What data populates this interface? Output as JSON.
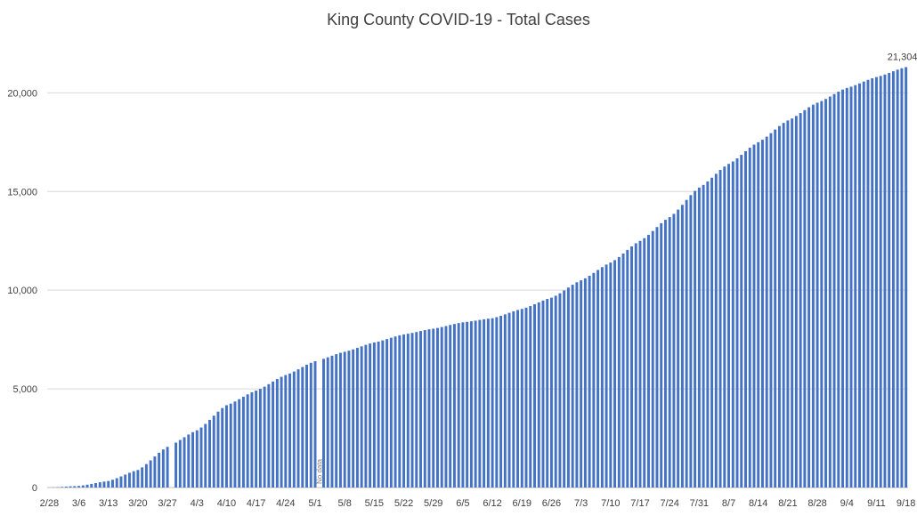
{
  "chart_data": {
    "type": "bar",
    "title": "King County COVID-19 - Total Cases",
    "xlabel": "",
    "ylabel": "",
    "ylim": [
      0,
      22000
    ],
    "y_ticks": [
      0,
      5000,
      10000,
      15000,
      20000
    ],
    "y_tick_labels": [
      "0",
      "5,000",
      "10,000",
      "15,000",
      "20,000"
    ],
    "x_tick_labels": [
      "2/28",
      "3/6",
      "3/13",
      "3/20",
      "3/27",
      "4/3",
      "4/10",
      "4/17",
      "4/24",
      "5/1",
      "5/8",
      "5/15",
      "5/22",
      "5/29",
      "6/5",
      "6/12",
      "6/19",
      "6/26",
      "7/3",
      "7/10",
      "7/17",
      "7/24",
      "7/31",
      "8/7",
      "8/14",
      "8/21",
      "8/28",
      "9/4",
      "9/11",
      "9/18"
    ],
    "start_date": "2/28",
    "end_date": "9/18",
    "gridlines": true,
    "legend": "none",
    "bar_color": "#4472c4",
    "anchor_values": [
      [
        "2/28",
        0
      ],
      [
        "3/6",
        80
      ],
      [
        "3/13",
        330
      ],
      [
        "3/20",
        890
      ],
      [
        "3/27",
        2060
      ],
      [
        "4/3",
        2900
      ],
      [
        "4/10",
        4170
      ],
      [
        "4/17",
        4910
      ],
      [
        "4/24",
        5700
      ],
      [
        "5/1",
        6400
      ],
      [
        "5/8",
        6880
      ],
      [
        "5/15",
        7350
      ],
      [
        "5/22",
        7760
      ],
      [
        "5/29",
        8050
      ],
      [
        "6/5",
        8370
      ],
      [
        "6/12",
        8580
      ],
      [
        "6/19",
        9050
      ],
      [
        "6/26",
        9620
      ],
      [
        "7/3",
        10500
      ],
      [
        "7/10",
        11400
      ],
      [
        "7/17",
        12500
      ],
      [
        "7/24",
        13700
      ],
      [
        "7/31",
        15200
      ],
      [
        "8/7",
        16400
      ],
      [
        "8/14",
        17500
      ],
      [
        "8/21",
        18600
      ],
      [
        "8/28",
        19500
      ],
      [
        "9/4",
        20250
      ],
      [
        "9/11",
        20800
      ],
      [
        "9/18",
        21304
      ]
    ],
    "data_labels": [
      {
        "date": "9/18",
        "text": "21,304"
      }
    ],
    "annotations": [
      {
        "date": "5/2",
        "text": "No data"
      }
    ],
    "missing_dates": [
      "3/28",
      "5/2"
    ]
  }
}
